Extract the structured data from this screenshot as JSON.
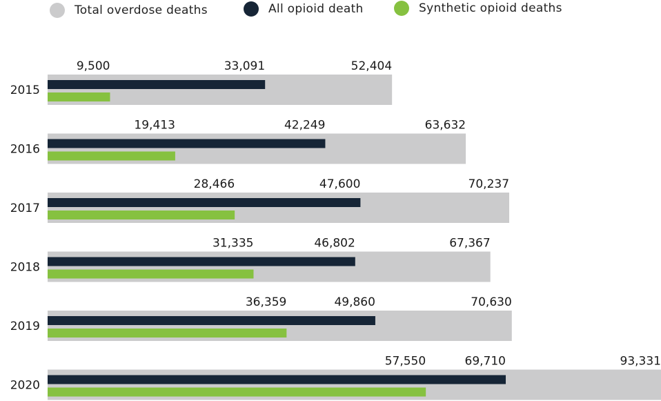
{
  "legend": {
    "total": {
      "label": "Total overdose deaths",
      "color": "#cbcbcc"
    },
    "opioid": {
      "label": "All  opioid death",
      "color": "#162536"
    },
    "synthetic": {
      "label": "Synthetic opioid deaths",
      "color": "#86c140"
    }
  },
  "chart_data": {
    "type": "bar",
    "orientation": "horizontal",
    "categories": [
      "2015",
      "2016",
      "2017",
      "2018",
      "2019",
      "2020"
    ],
    "series": [
      {
        "name": "Total overdose deaths",
        "color": "#cbcbcc",
        "values": [
          52404,
          63632,
          70237,
          67367,
          70630,
          93331
        ],
        "labels": [
          "52,404",
          "63,632",
          "70,237",
          "67,367",
          "70,630",
          "93,331"
        ]
      },
      {
        "name": "All  opioid death",
        "color": "#162536",
        "values": [
          33091,
          42249,
          47600,
          46802,
          49860,
          69710
        ],
        "labels": [
          "33,091",
          "42,249",
          "47,600",
          "46,802",
          "49,860",
          "69,710"
        ]
      },
      {
        "name": "Synthetic opioid deaths",
        "color": "#86c140",
        "values": [
          9500,
          19413,
          28466,
          31335,
          36359,
          57550
        ],
        "labels": [
          "9,500",
          "19,413",
          "28,466",
          "31,335",
          "36,359",
          "57,550"
        ]
      }
    ],
    "xlim": [
      0,
      93331
    ],
    "grid": false,
    "legend_position": "top-left"
  }
}
